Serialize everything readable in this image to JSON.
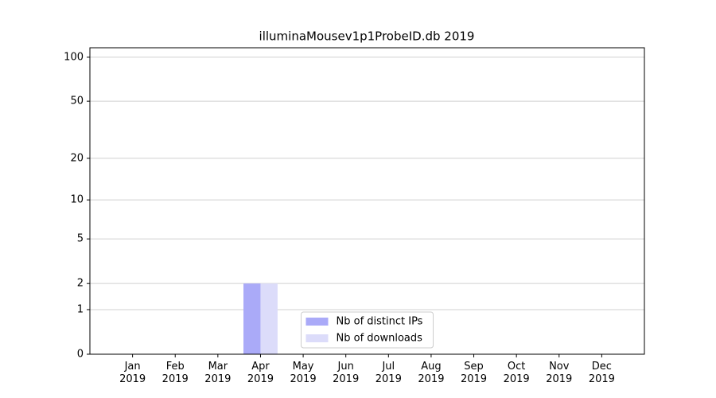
{
  "chart_data": {
    "type": "bar",
    "title": "illuminaMousev1p1ProbeID.db 2019",
    "categories": [
      "Jan\n2019",
      "Feb\n2019",
      "Mar\n2019",
      "Apr\n2019",
      "May\n2019",
      "Jun\n2019",
      "Jul\n2019",
      "Aug\n2019",
      "Sep\n2019",
      "Oct\n2019",
      "Nov\n2019",
      "Dec\n2019"
    ],
    "series": [
      {
        "name": "Nb of distinct IPs",
        "color": "#aaaaf8",
        "values": [
          0,
          0,
          0,
          2,
          0,
          0,
          0,
          0,
          0,
          0,
          0,
          0
        ]
      },
      {
        "name": "Nb of downloads",
        "color": "#dcdcfa",
        "values": [
          0,
          0,
          0,
          2,
          0,
          0,
          0,
          0,
          0,
          0,
          0,
          0
        ]
      }
    ],
    "yscale": "log1p",
    "ylim": [
      0,
      116
    ],
    "yticks": [
      0,
      1,
      2,
      5,
      10,
      20,
      50,
      100
    ],
    "grid": true,
    "legend": "lower center"
  }
}
